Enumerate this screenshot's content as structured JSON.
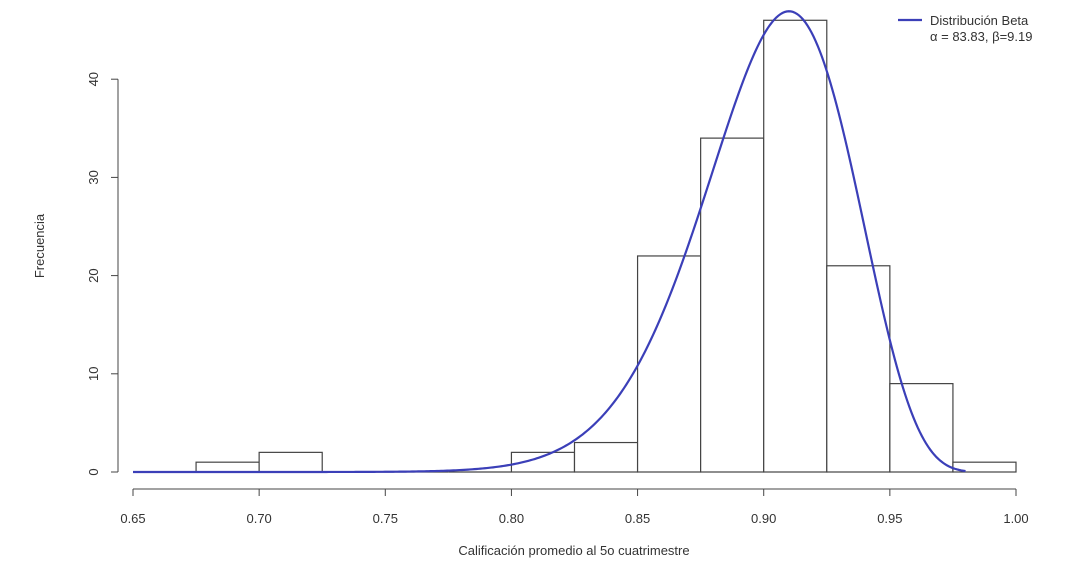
{
  "chart_data": {
    "type": "bar",
    "xlabel": "Calificación promedio al 5o cuatrimestre",
    "ylabel": "Frecuencia",
    "xlim": [
      0.65,
      1.0
    ],
    "ylim": [
      0,
      47
    ],
    "x_ticks": [
      0.65,
      0.7,
      0.75,
      0.8,
      0.85,
      0.9,
      0.95,
      1.0
    ],
    "x_tick_labels": [
      "0.65",
      "0.70",
      "0.75",
      "0.80",
      "0.85",
      "0.90",
      "0.95",
      "1.00"
    ],
    "y_ticks": [
      0,
      10,
      20,
      30,
      40
    ],
    "y_tick_labels": [
      "0",
      "10",
      "20",
      "30",
      "40"
    ],
    "bins": [
      {
        "start": 0.675,
        "end": 0.7,
        "count": 1
      },
      {
        "start": 0.7,
        "end": 0.725,
        "count": 2
      },
      {
        "start": 0.725,
        "end": 0.75,
        "count": 0
      },
      {
        "start": 0.75,
        "end": 0.775,
        "count": 0
      },
      {
        "start": 0.775,
        "end": 0.8,
        "count": 0
      },
      {
        "start": 0.8,
        "end": 0.825,
        "count": 2
      },
      {
        "start": 0.825,
        "end": 0.85,
        "count": 3
      },
      {
        "start": 0.85,
        "end": 0.875,
        "count": 22
      },
      {
        "start": 0.875,
        "end": 0.9,
        "count": 34
      },
      {
        "start": 0.9,
        "end": 0.925,
        "count": 46
      },
      {
        "start": 0.925,
        "end": 0.95,
        "count": 21
      },
      {
        "start": 0.95,
        "end": 0.975,
        "count": 9
      },
      {
        "start": 0.975,
        "end": 1.0,
        "count": 1
      }
    ],
    "curve": {
      "name": "Distribución Beta",
      "alpha": 83.83,
      "beta": 9.19,
      "color": "#3b3fb8",
      "x_range": [
        0.65,
        0.98
      ]
    },
    "legend": {
      "position": "top-right",
      "line1": "Distribución Beta",
      "line2": "α = 83.83, β=9.19"
    }
  }
}
